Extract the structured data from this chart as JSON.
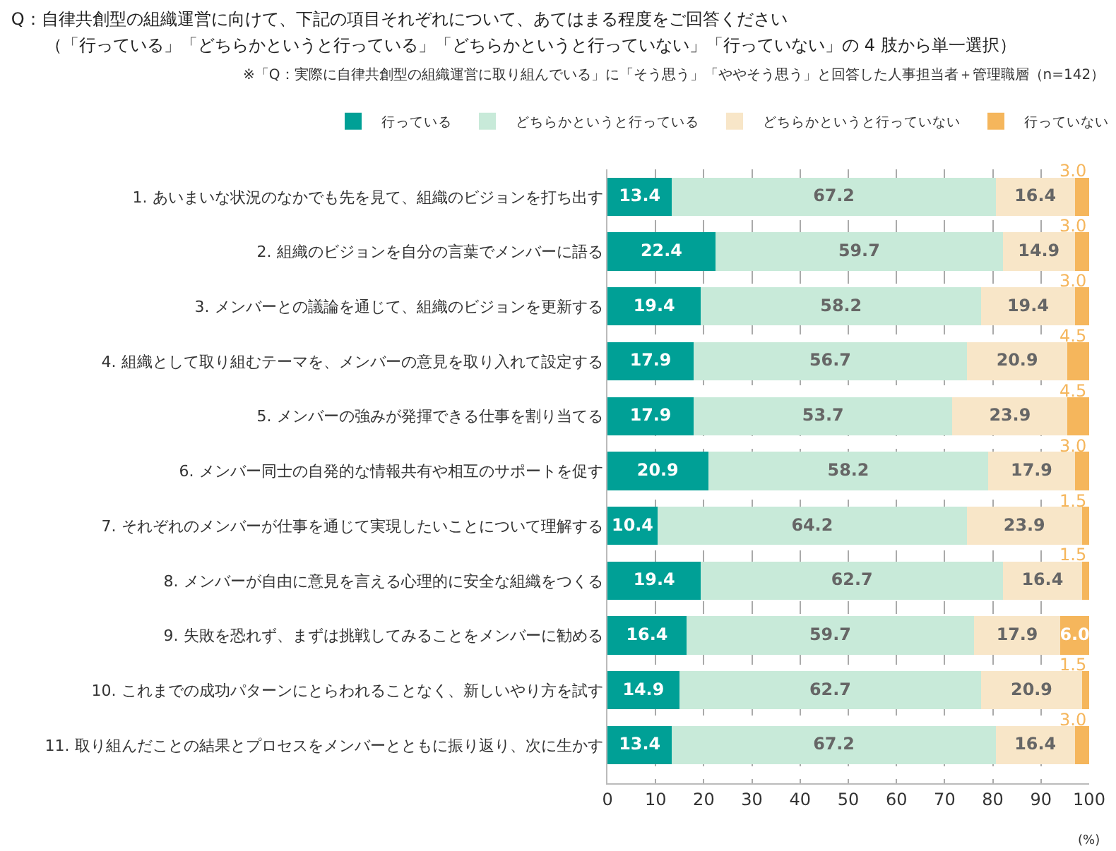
{
  "chart_data": {
    "type": "bar",
    "orientation": "horizontal",
    "stacked": true,
    "title": "Q：自律共創型の組織運営に向けて、下記の項目それぞれについて、あてはまる程度をご回答ください",
    "annotations": [
      "（「行っている」「どちらかというと行っている」「どちらかというと行っていない」「行っていない」の 4 肢から単一選択）"
    ],
    "subtitle": "※「Q：実際に自律共創型の組織運営に取り組んでいる」に「そう思う」「ややそう思う」と回答した人事担当者＋管理職層（n=142）",
    "xlabel": "(%)",
    "categories": [
      "1. あいまいな状況のなかでも先を見て、組織のビジョンを打ち出す",
      "2. 組織のビジョンを自分の言葉でメンバーに語る",
      "3. メンバーとの議論を通じて、組織のビジョンを更新する",
      "4. 組織として取り組むテーマを、メンバーの意見を取り入れて設定する",
      "5. メンバーの強みが発揮できる仕事を割り当てる",
      "6. メンバー同士の自発的な情報共有や相互のサポートを促す",
      "7. それぞれのメンバーが仕事を通じて実現したいことについて理解する",
      "8. メンバーが自由に意見を言える心理的に安全な組織をつくる",
      "9. 失敗を恐れず、まずは挑戦してみることをメンバーに勧める",
      "10. これまでの成功パターンにとらわれることなく、新しいやり方を試す",
      "11. 取り組んだことの結果とプロセスをメンバーとともに振り返り、次に生かす"
    ],
    "series": [
      {
        "name": "行っている",
        "color": "#00a096",
        "values": [
          13.4,
          22.4,
          19.4,
          17.9,
          17.9,
          20.9,
          10.4,
          19.4,
          16.4,
          14.9,
          13.4
        ],
        "value_labels": [
          "13.4",
          "22.4",
          "19.4",
          "17.9",
          "17.9",
          "20.9",
          "10.4",
          "19.4",
          "16.4",
          "14.9",
          "13.4"
        ]
      },
      {
        "name": "どちらかというと行っている",
        "color": "#c8ead9",
        "values": [
          67.2,
          59.7,
          58.2,
          56.7,
          53.7,
          58.2,
          64.2,
          62.7,
          59.7,
          62.7,
          67.2
        ],
        "value_labels": [
          "67.2",
          "59.7",
          "58.2",
          "56.7",
          "53.7",
          "58.2",
          "64.2",
          "62.7",
          "59.7",
          "62.7",
          "67.2"
        ]
      },
      {
        "name": "どちらかというと行っていない",
        "color": "#f8e6c8",
        "values": [
          16.4,
          14.9,
          19.4,
          20.9,
          23.9,
          17.9,
          23.9,
          16.4,
          17.9,
          20.9,
          16.4
        ],
        "value_labels": [
          "16.4",
          "14.9",
          "19.4",
          "20.9",
          "23.9",
          "17.9",
          "23.9",
          "16.4",
          "17.9",
          "20.9",
          "16.4"
        ]
      },
      {
        "name": "行っていない",
        "color": "#f5b65c",
        "values": [
          3.0,
          3.0,
          3.0,
          4.5,
          4.5,
          3.0,
          1.5,
          1.5,
          6.0,
          1.5,
          3.0
        ],
        "value_labels": [
          "3.0",
          "3.0",
          "3.0",
          "4.5",
          "4.5",
          "3.0",
          "1.5",
          "1.5",
          "6.0",
          "1.5",
          "3.0"
        ]
      }
    ],
    "xlim": [
      0,
      100
    ],
    "xticks": [
      0,
      10,
      20,
      30,
      40,
      50,
      60,
      70,
      80,
      90,
      100
    ],
    "grid": "x",
    "legend": "top"
  }
}
